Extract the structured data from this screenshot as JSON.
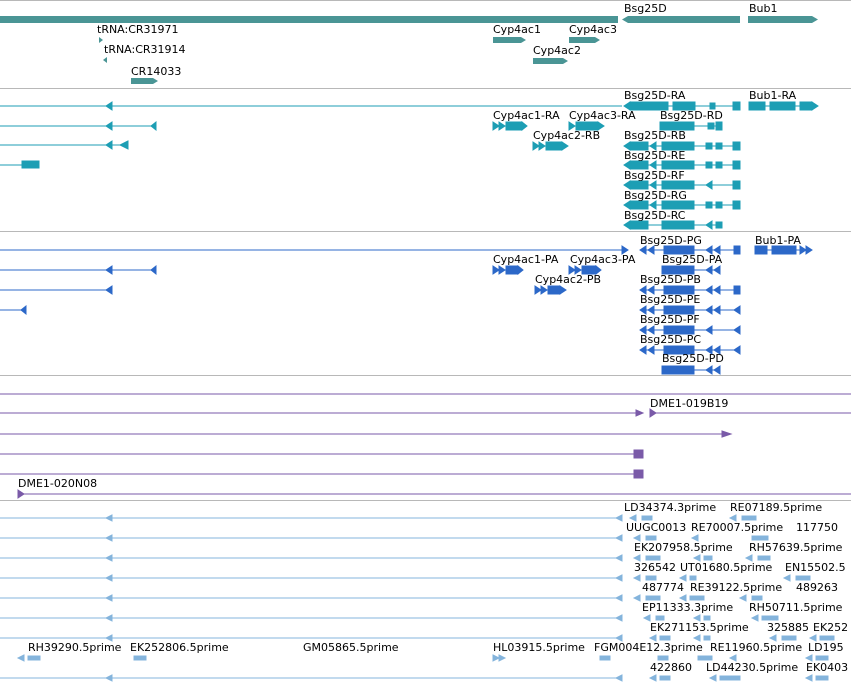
{
  "colors": {
    "gene": "#4a9595",
    "transcript": "#1d9eb4",
    "protein": "#2c68c8",
    "clone": "#7a5aa8",
    "est": "#84b4dc",
    "separator": "#b8b8b8"
  },
  "tracks": {
    "genes": {
      "labels": [
        "tRNA:CR31971",
        "tRNA:CR31914",
        "CR14033",
        "Cyp4ac1",
        "Cyp4ac3",
        "Cyp4ac2",
        "Bsg25D",
        "Bub1"
      ]
    },
    "transcripts": {
      "labels": [
        "Bsg25D-RA",
        "Bub1-RA",
        "Cyp4ac1-RA",
        "Cyp4ac3-RA",
        "Bsg25D-RD",
        "Cyp4ac2-RB",
        "Bsg25D-RB",
        "Bsg25D-RE",
        "Bsg25D-RF",
        "Bsg25D-RG",
        "Bsg25D-RC"
      ]
    },
    "proteins": {
      "labels": [
        "Bsg25D-PG",
        "Bub1-PA",
        "Cyp4ac1-PA",
        "Cyp4ac3-PA",
        "Bsg25D-PA",
        "Cyp4ac2-PB",
        "Bsg25D-PB",
        "Bsg25D-PE",
        "Bsg25D-PF",
        "Bsg25D-PC",
        "Bsg25D-PD"
      ]
    },
    "clones": {
      "labels": [
        "DME1-019B19",
        "DME1-020N08"
      ]
    },
    "ests": {
      "labels": [
        "LD34374.3prime",
        "RE07189.5prime",
        "UUGC0013",
        "RE70007.5prime",
        "117750",
        "EK207958.5prime",
        "RH57639.5prime",
        "326542",
        "UT01680.5prime",
        "EN15502.5",
        "487774",
        "RE39122.5prime",
        "489263",
        "EP11333.3prime",
        "RH50711.5prime",
        "EK271153.5prime",
        "325885",
        "EK252",
        "RH39290.5prime",
        "EK252806.5prime",
        "GM05865.5prime",
        "HL03915.5prime",
        "FGM004E12.3prime",
        "RE11960.5prime",
        "LD195",
        "422860",
        "LD44230.5prime",
        "EK0403"
      ]
    }
  }
}
